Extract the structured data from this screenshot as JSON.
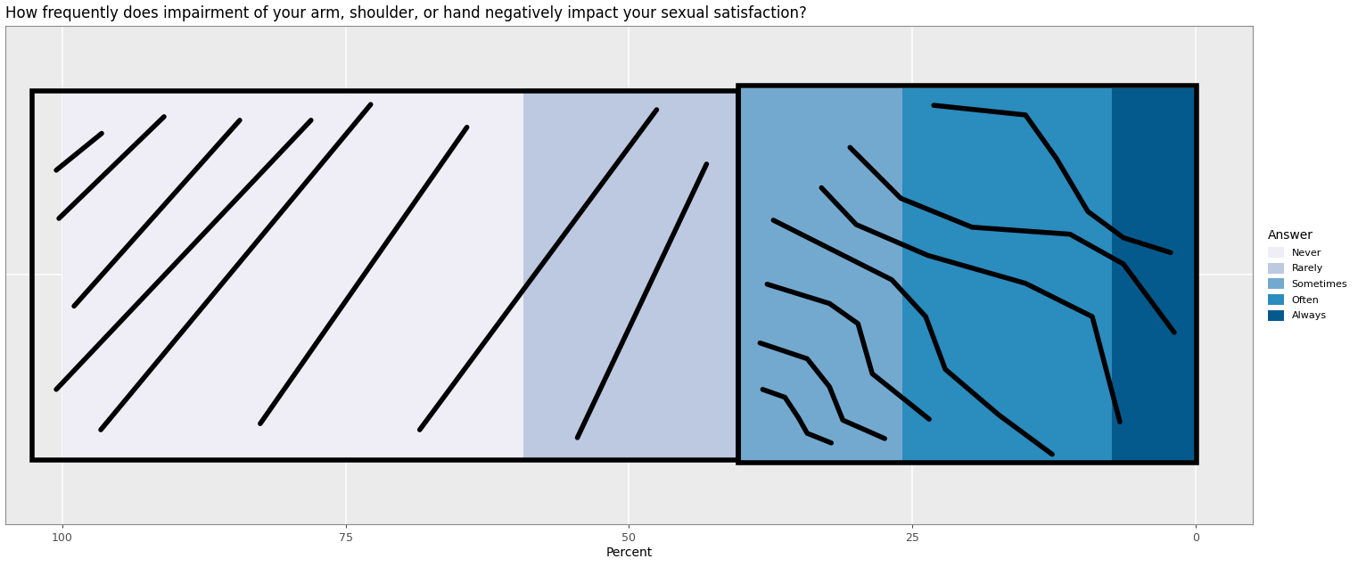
{
  "chart_data": {
    "type": "bar",
    "orientation": "horizontal",
    "stacked": true,
    "title": "How frequently does impairment of your arm, shoulder, or hand negatively impact your sexual satisfaction?",
    "x_label": "Percent",
    "categories": [
      null
    ],
    "series": [
      {
        "name": "Never",
        "color": "#efedf5",
        "values": [
          40.7
        ]
      },
      {
        "name": "Rarely",
        "color": "#bdc9e1",
        "values": [
          18.9
        ]
      },
      {
        "name": "Sometimes",
        "color": "#74a9cf",
        "values": [
          14.5
        ]
      },
      {
        "name": "Often",
        "color": "#2b8cbe",
        "values": [
          18.5
        ]
      },
      {
        "name": "Always",
        "color": "#045a8d",
        "values": [
          7.4
        ]
      }
    ],
    "xlim": [
      105,
      -5
    ],
    "xticks": [
      0,
      25,
      50,
      75,
      100
    ],
    "grid": true,
    "legend": "right",
    "legend_title": "Answer",
    "tick_labels": "x"
  }
}
